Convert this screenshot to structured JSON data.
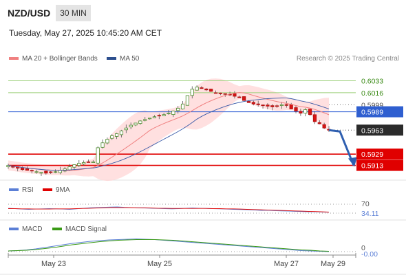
{
  "header": {
    "pair": "NZD/USD",
    "timeframe": "30 MIN",
    "datetime": "Tuesday, May 27, 2025 10:45:20 AM CET",
    "credit": "Research © 2025 Trading Central"
  },
  "legends": {
    "price": [
      {
        "label": "MA 20 + Bollinger Bands",
        "color": "#f08080"
      },
      {
        "label": "MA 50",
        "color": "#2d4f8e"
      }
    ],
    "rsi": [
      {
        "label": "RSI",
        "color": "#5b7fd6"
      },
      {
        "label": "9MA",
        "color": "#e00000"
      }
    ],
    "macd": [
      {
        "label": "MACD",
        "color": "#5b7fd6"
      },
      {
        "label": "MACD Signal",
        "color": "#3a9a16"
      }
    ]
  },
  "chart_data": [
    {
      "type": "candlestick",
      "name": "price",
      "ylim": [
        0.5896,
        0.605
      ],
      "x": [
        "May 23",
        "May 25",
        "May 27",
        "May 29"
      ],
      "current_price": 0.5963,
      "levels": [
        {
          "label": "0.6033",
          "value": 0.6033,
          "kind": "resistance"
        },
        {
          "label": "0.6016",
          "value": 0.6016,
          "kind": "resistance"
        },
        {
          "label": "0.5999",
          "value": 0.5999,
          "kind": "reference"
        },
        {
          "label": "0.5989",
          "value": 0.5989,
          "kind": "pivot"
        },
        {
          "label": "0.5963",
          "value": 0.5963,
          "kind": "current"
        },
        {
          "label": "0.5929",
          "value": 0.5929,
          "kind": "support"
        },
        {
          "label": "0.5913",
          "value": 0.5913,
          "kind": "support"
        }
      ],
      "close_path": [
        0.5913,
        0.5911,
        0.5909,
        0.5907,
        0.5906,
        0.5905,
        0.5904,
        0.5903,
        0.5902,
        0.5903,
        0.5904,
        0.5906,
        0.5908,
        0.5911,
        0.5914,
        0.5916,
        0.5917,
        0.5918,
        0.5918,
        0.5938,
        0.5945,
        0.595,
        0.5955,
        0.5958,
        0.5962,
        0.5966,
        0.597,
        0.5973,
        0.5976,
        0.5978,
        0.598,
        0.5982,
        0.5983,
        0.5985,
        0.5987,
        0.599,
        0.5994,
        0.6,
        0.6012,
        0.6021,
        0.6024,
        0.6022,
        0.602,
        0.6018,
        0.6016,
        0.6015,
        0.6014,
        0.6013,
        0.6011,
        0.6009,
        0.6005,
        0.6002,
        0.6,
        0.5999,
        0.5998,
        0.5997,
        0.5996,
        0.5997,
        0.5999,
        0.5998,
        0.5993,
        0.599,
        0.5987,
        0.5992,
        0.5985,
        0.5975,
        0.5972,
        0.5966,
        0.5963
      ],
      "forecast": [
        0.5963,
        0.5961,
        0.5913
      ]
    },
    {
      "type": "line",
      "name": "rsi",
      "ylim": [
        0,
        100
      ],
      "levels": [
        {
          "label": "70",
          "value": 70
        }
      ],
      "current_value_label": "34.11",
      "series": [
        {
          "name": "RSI",
          "values": [
            52,
            50,
            48,
            47,
            48,
            49,
            50,
            49,
            48,
            47,
            49,
            52,
            54,
            55,
            56,
            57,
            58,
            56,
            55,
            54,
            53,
            52,
            51,
            50,
            49,
            50,
            52,
            53,
            52,
            51,
            50,
            49,
            48,
            47,
            46,
            45,
            44,
            42,
            43,
            41,
            40,
            39,
            38,
            37,
            36,
            36,
            35,
            34.11
          ]
        },
        {
          "name": "9MA",
          "values": [
            50,
            50,
            49,
            49,
            48,
            48,
            48,
            49,
            49,
            49,
            50,
            51,
            52,
            53,
            54,
            55,
            55,
            55,
            55,
            54,
            54,
            53,
            52,
            52,
            51,
            51,
            51,
            51,
            51,
            51,
            50,
            50,
            49,
            49,
            48,
            47,
            46,
            45,
            44,
            43,
            42,
            41,
            40,
            39,
            38,
            37,
            36,
            35
          ]
        }
      ]
    },
    {
      "type": "line",
      "name": "macd",
      "levels": [
        {
          "label": "0",
          "value": 0
        }
      ],
      "current_value_label": "-0.00",
      "series": [
        {
          "name": "MACD",
          "values": [
            0.2,
            0.3,
            0.5,
            0.8,
            1.2,
            1.6,
            2.0,
            2.4,
            2.7,
            3.0,
            3.2,
            3.4,
            3.5,
            3.6,
            3.7,
            3.6,
            3.5,
            3.3,
            3.1,
            2.9,
            2.7,
            2.5,
            2.3,
            2.1,
            1.9,
            1.7,
            1.5,
            1.3,
            1.1,
            0.9,
            0.7,
            0.5,
            0.3,
            0.2,
            0.1,
            0.0
          ]
        },
        {
          "name": "MACD Signal",
          "values": [
            0.2,
            0.3,
            0.4,
            0.6,
            0.9,
            1.2,
            1.6,
            2.0,
            2.3,
            2.6,
            2.9,
            3.1,
            3.3,
            3.4,
            3.5,
            3.5,
            3.5,
            3.4,
            3.3,
            3.1,
            2.9,
            2.7,
            2.5,
            2.3,
            2.1,
            1.9,
            1.7,
            1.5,
            1.3,
            1.1,
            0.9,
            0.7,
            0.5,
            0.4,
            0.2,
            0.1
          ]
        }
      ]
    }
  ]
}
